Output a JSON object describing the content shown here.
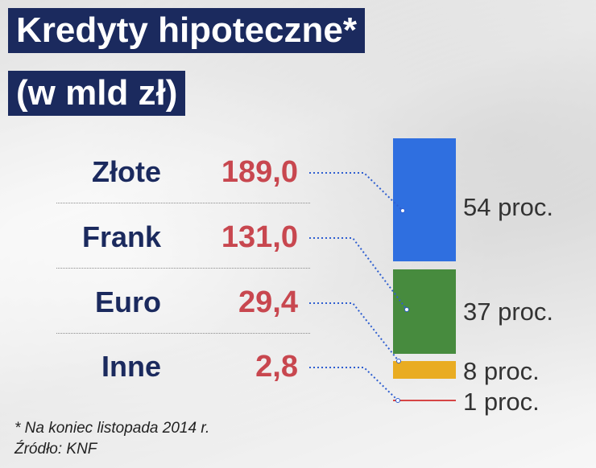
{
  "title": {
    "line1": "Kredyty hipoteczne*",
    "line2": "(w mld zł)"
  },
  "colors": {
    "title_bg": "#1b2a5e",
    "label_text": "#1b2a5e",
    "value_text": "#c8474f",
    "connector": "#2f5fd0"
  },
  "chart_data": {
    "type": "bar",
    "orientation": "stacked-vertical",
    "unit": "mld zł",
    "categories": [
      "Złote",
      "Frank",
      "Euro",
      "Inne"
    ],
    "values": [
      189.0,
      131.0,
      29.4,
      2.8
    ],
    "value_labels": [
      "189,0",
      "131,0",
      "29,4",
      "2,8"
    ],
    "shares_percent": [
      54,
      37,
      8,
      1
    ],
    "share_labels": [
      "54 proc.",
      "37 proc.",
      "8 proc.",
      "1 proc."
    ],
    "colors": [
      "#2f6fe0",
      "#478b3e",
      "#e9ac22",
      "#d64545"
    ]
  },
  "footnotes": {
    "note": "* Na koniec listopada 2014 r.",
    "source": "Źródło: KNF"
  }
}
